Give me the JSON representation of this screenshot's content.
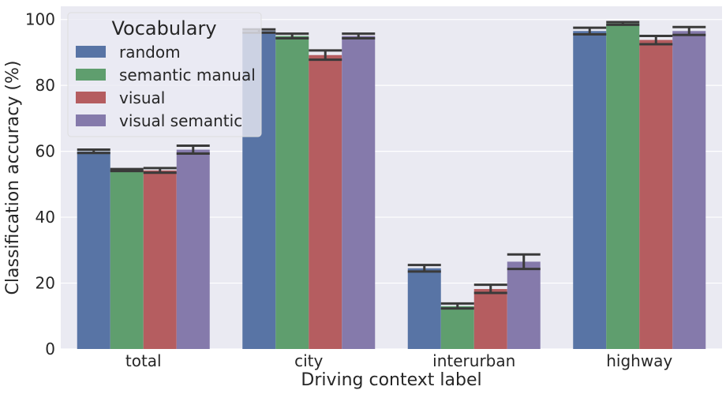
{
  "chart_data": {
    "type": "bar",
    "xlabel": "Driving context label",
    "ylabel": "Classification accuracy (%)",
    "ylim": [
      0,
      104
    ],
    "yticks": [
      0,
      20,
      40,
      60,
      80,
      100
    ],
    "grid": true,
    "legend_position": "top-left",
    "categories": [
      "total",
      "city",
      "interurban",
      "highway"
    ],
    "legend": {
      "title": "Vocabulary"
    },
    "series": [
      {
        "name": "random",
        "color": "#5874a5",
        "values": [
          60.0,
          96.5,
          24.5,
          96.5
        ],
        "err": [
          [
            59.5,
            60.5
          ],
          [
            96.0,
            97.0
          ],
          [
            23.5,
            25.5
          ],
          [
            95.5,
            97.5
          ]
        ]
      },
      {
        "name": "semantic manual",
        "color": "#5f9e6e",
        "values": [
          54.3,
          95.0,
          13.0,
          98.8
        ],
        "err": [
          [
            54.0,
            54.6
          ],
          [
            94.3,
            95.7
          ],
          [
            12.3,
            13.8
          ],
          [
            98.4,
            99.2
          ]
        ]
      },
      {
        "name": "visual",
        "color": "#b55d60",
        "values": [
          54.2,
          89.2,
          18.2,
          93.8
        ],
        "err": [
          [
            53.5,
            54.9
          ],
          [
            87.8,
            90.6
          ],
          [
            17.0,
            19.5
          ],
          [
            92.5,
            95.0
          ]
        ]
      },
      {
        "name": "visual semantic",
        "color": "#857aab",
        "values": [
          60.5,
          95.0,
          26.5,
          96.5
        ],
        "err": [
          [
            59.3,
            61.7
          ],
          [
            94.3,
            95.7
          ],
          [
            24.3,
            28.7
          ],
          [
            95.3,
            97.7
          ]
        ]
      }
    ]
  }
}
